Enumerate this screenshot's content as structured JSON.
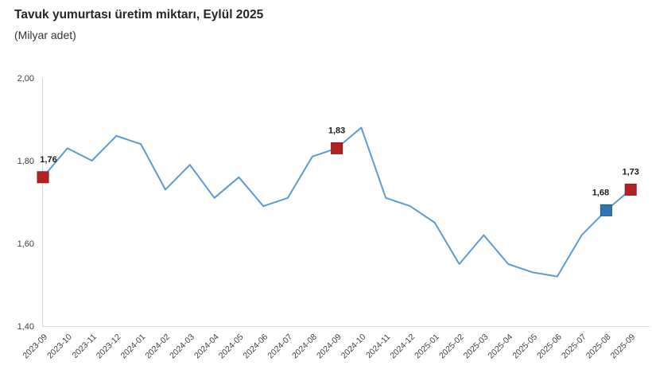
{
  "header": {
    "title": "Tavuk yumurtası üretim miktarı, Eylül 2025",
    "subtitle": "(Milyar adet)"
  },
  "chart_data": {
    "type": "line",
    "title": "Tavuk yumurtası üretim miktarı, Eylül 2025",
    "subtitle": "(Milyar adet)",
    "xlabel": "",
    "ylabel": "Milyar adet",
    "ylim": [
      1.4,
      2.0
    ],
    "yticks": [
      1.4,
      1.6,
      1.8,
      2.0
    ],
    "ytick_labels": [
      "1,40",
      "1,60",
      "1,80",
      "2,00"
    ],
    "grid": "none",
    "legend": "none",
    "line_color": "#5b9bd5",
    "axis_color": "#d9d9d9",
    "tick_label_color": "#404040",
    "x": [
      "2023-09",
      "2023-10",
      "2023-11",
      "2023-12",
      "2024-01",
      "2024-02",
      "2024-03",
      "2024-04",
      "2024-05",
      "2024-06",
      "2024-07",
      "2024-08",
      "2024-09",
      "2024-10",
      "2024-11",
      "2024-12",
      "2025-01",
      "2025-02",
      "2025-03",
      "2025-04",
      "2025-05",
      "2025-06",
      "2025-07",
      "2025-08",
      "2025-09"
    ],
    "series": [
      {
        "name": "Tavuk yumurtası üretim miktarı",
        "values": [
          1.76,
          1.83,
          1.8,
          1.86,
          1.84,
          1.73,
          1.79,
          1.71,
          1.76,
          1.69,
          1.71,
          1.81,
          1.83,
          1.88,
          1.71,
          1.69,
          1.65,
          1.55,
          1.62,
          1.55,
          1.53,
          1.52,
          1.62,
          1.68,
          1.73
        ]
      }
    ],
    "highlighted_points": [
      {
        "x": "2023-09",
        "value": 1.76,
        "label": "1,76",
        "color": "#b22222",
        "border": "#8f1b1b",
        "label_dx": 7
      },
      {
        "x": "2024-09",
        "value": 1.83,
        "label": "1,83",
        "color": "#b22222",
        "border": "#8f1b1b",
        "label_dx": 0
      },
      {
        "x": "2025-08",
        "value": 1.68,
        "label": "1,68",
        "color": "#2e75b6",
        "border": "#24588a",
        "label_dx": -7
      },
      {
        "x": "2025-09",
        "value": 1.73,
        "label": "1,73",
        "color": "#b22222",
        "border": "#8f1b1b",
        "label_dx": 0
      }
    ]
  }
}
